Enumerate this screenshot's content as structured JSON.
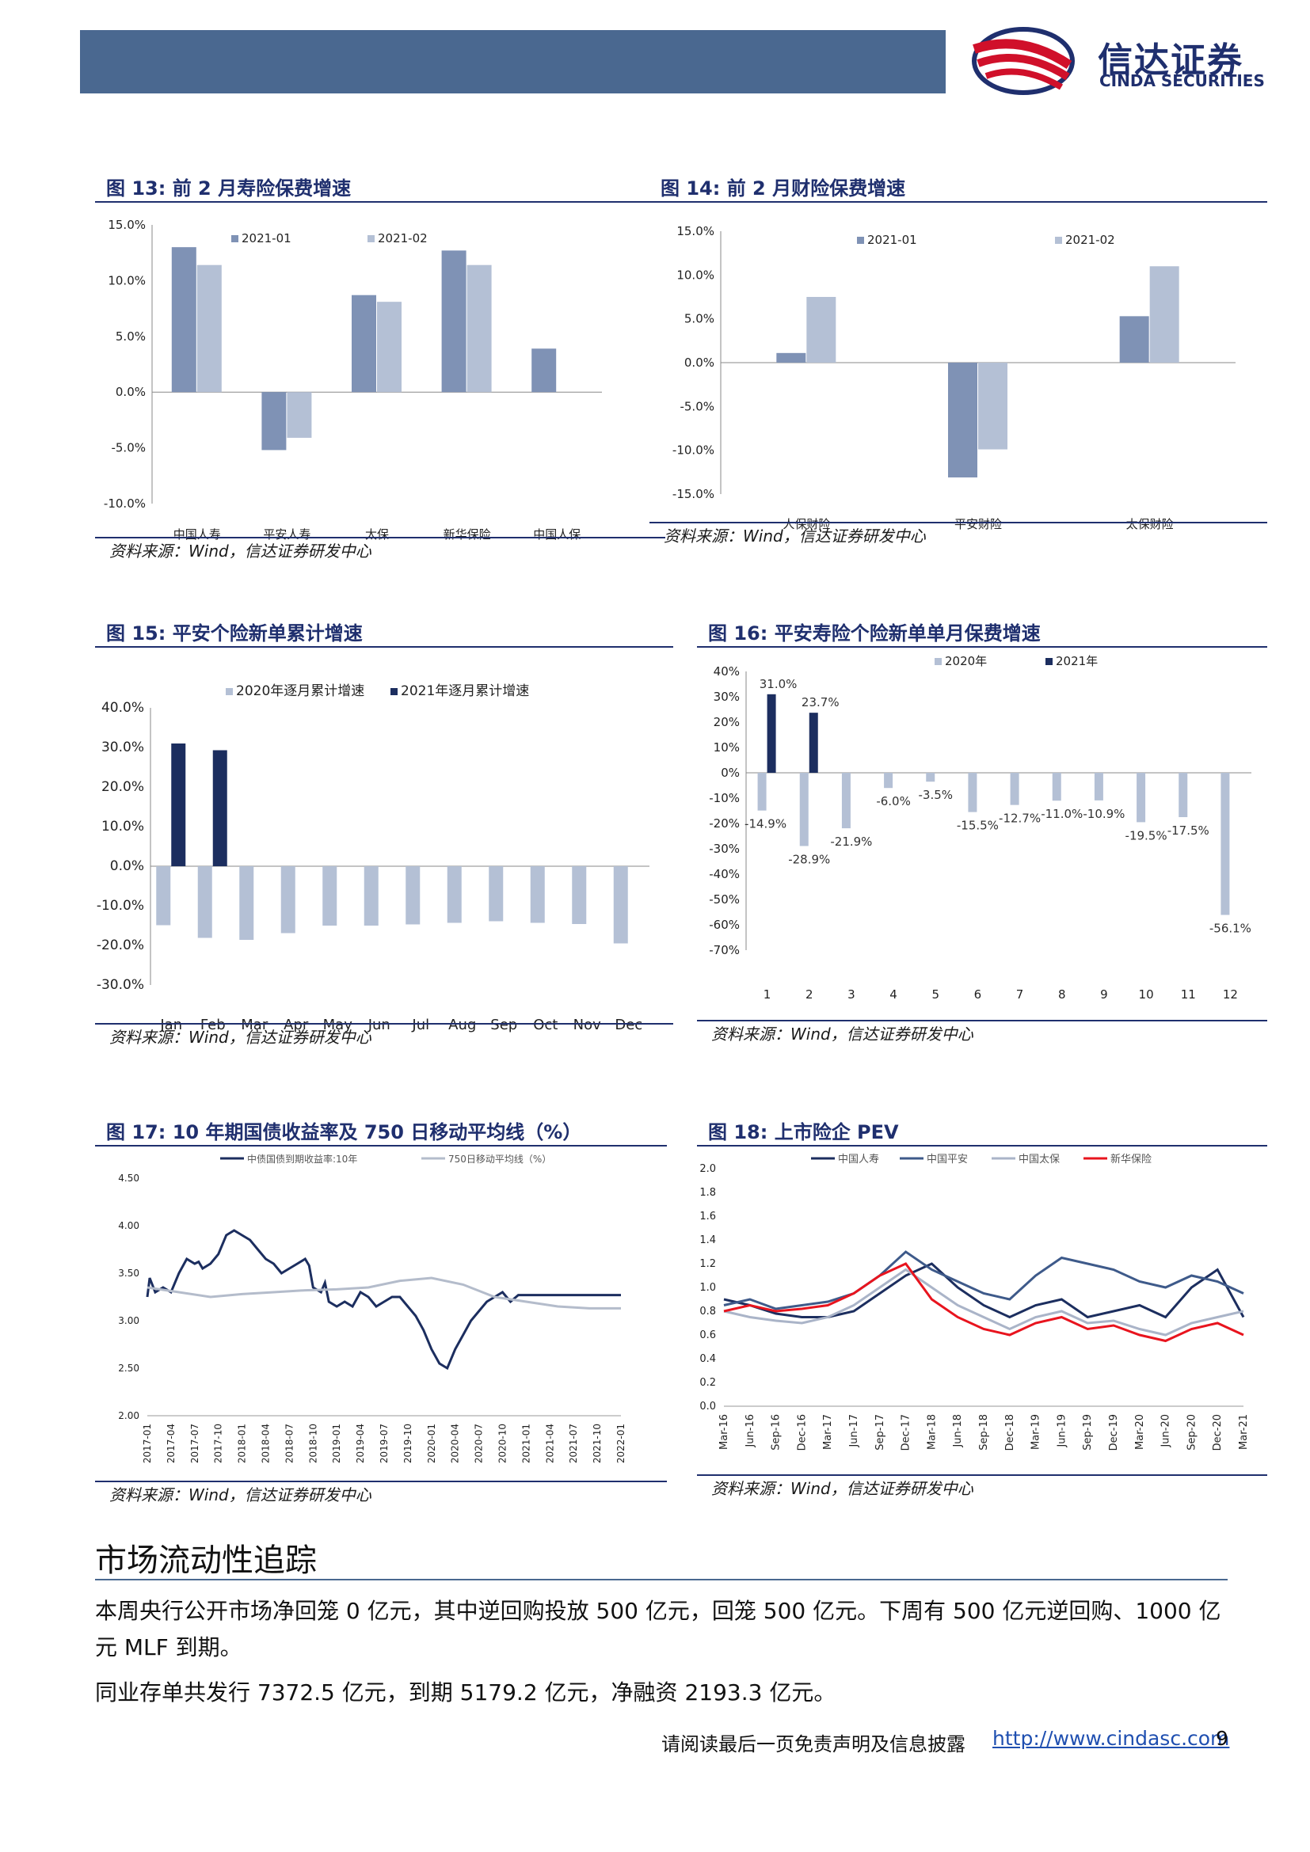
{
  "brand": {
    "name_cn": "信达证券",
    "name_en": "CINDA SECURITIES",
    "colors": {
      "navy": "#1f2f6e",
      "accent_red": "#d0102a",
      "bar_blue": "#4a6890"
    }
  },
  "figures": [
    {
      "title": "图 13:  前 2 月寿险保费增速",
      "source": "资料来源：Wind，信达证券研发中心",
      "chart_data": {
        "type": "bar",
        "categories": [
          "中国人寿",
          "平安人寿",
          "太保",
          "新华保险",
          "中国人保"
        ],
        "series": [
          {
            "name": "2021-01",
            "values": [
              13.0,
              -5.2,
              8.7,
              12.7,
              3.9
            ],
            "color": "#7f92b5"
          },
          {
            "name": "2021-02",
            "values": [
              11.4,
              -4.1,
              8.1,
              11.4,
              null
            ],
            "color": "#b4c0d5"
          }
        ],
        "y_ticks": [
          "15.0%",
          "10.0%",
          "5.0%",
          "0.0%",
          "-5.0%",
          "-10.0%"
        ],
        "ylim": [
          -10,
          15
        ],
        "legend": "top"
      }
    },
    {
      "title": "图 14:  前 2 月财险保费增速",
      "source": "资料来源：Wind，信达证券研发中心",
      "chart_data": {
        "type": "bar",
        "categories": [
          "人保财险",
          "平安财险",
          "太保财险"
        ],
        "series": [
          {
            "name": "2021-01",
            "values": [
              1.1,
              -13.1,
              5.3
            ],
            "color": "#7f92b5"
          },
          {
            "name": "2021-02",
            "values": [
              7.5,
              -9.9,
              11.0
            ],
            "color": "#b4c0d5"
          }
        ],
        "y_ticks": [
          "15.0%",
          "10.0%",
          "5.0%",
          "0.0%",
          "-5.0%",
          "-10.0%",
          "-15.0%"
        ],
        "ylim": [
          -15,
          15
        ],
        "legend": "top"
      }
    },
    {
      "title": "图 15:  平安个险新单累计增速",
      "source": "资料来源：Wind，信达证券研发中心",
      "chart_data": {
        "type": "bar",
        "categories": [
          "Jan",
          "Feb",
          "Mar",
          "Apr",
          "May",
          "Jun",
          "Jul",
          "Aug",
          "Sep",
          "Oct",
          "Nov",
          "Dec"
        ],
        "series": [
          {
            "name": "2020年逐月累计增速",
            "values": [
              -14.9,
              -18.1,
              -18.6,
              -16.9,
              -15.0,
              -15.0,
              -14.7,
              -14.3,
              -13.9,
              -14.3,
              -14.6,
              -19.5
            ],
            "color": "#b4c0d5"
          },
          {
            "name": "2021年逐月累计增速",
            "values": [
              31.0,
              29.3,
              null,
              null,
              null,
              null,
              null,
              null,
              null,
              null,
              null,
              null
            ],
            "color": "#1c2e5f"
          }
        ],
        "y_ticks": [
          "40.0%",
          "30.0%",
          "20.0%",
          "10.0%",
          "0.0%",
          "-10.0%",
          "-20.0%",
          "-30.0%"
        ],
        "ylim": [
          -30,
          40
        ],
        "legend": "top"
      }
    },
    {
      "title": "图 16:  平安寿险个险新单单月保费增速",
      "source": "资料来源：Wind，信达证券研发中心",
      "chart_data": {
        "type": "bar",
        "categories": [
          "1",
          "2",
          "3",
          "4",
          "5",
          "6",
          "7",
          "8",
          "9",
          "10",
          "11",
          "12"
        ],
        "series": [
          {
            "name": "2020年",
            "values": [
              -14.9,
              -28.9,
              -21.9,
              -6.0,
              -3.5,
              -15.5,
              -12.7,
              -11.0,
              -10.9,
              -19.5,
              -17.5,
              -56.1
            ],
            "color": "#b4c0d5"
          },
          {
            "name": "2021年",
            "values": [
              31.0,
              23.7,
              null,
              null,
              null,
              null,
              null,
              null,
              null,
              null,
              null,
              null
            ],
            "color": "#1c2e5f"
          }
        ],
        "data_labels_2020": [
          "-14.9%",
          "-28.9%",
          "-21.9%",
          "-6.0%",
          "-3.5%",
          "-15.5%",
          "-12.7%",
          "-11.0%",
          "-10.9%",
          "-19.5%",
          "-17.5%",
          "-56.1%"
        ],
        "data_labels_2021": [
          "31.0%",
          "23.7%"
        ],
        "y_ticks": [
          "40%",
          "30%",
          "20%",
          "10%",
          "0%",
          "-10%",
          "-20%",
          "-30%",
          "-40%",
          "-50%",
          "-60%",
          "-70%"
        ],
        "ylim": [
          -70,
          40
        ],
        "legend": "top"
      }
    },
    {
      "title": "图 17:  10 年期国债收益率及 750 日移动平均线（%）",
      "source": "资料来源：Wind，信达证券研发中心",
      "chart_data": {
        "type": "line",
        "x_ticks": [
          "2017-01",
          "2017-04",
          "2017-07",
          "2017-10",
          "2018-01",
          "2018-04",
          "2018-07",
          "2018-10",
          "2019-01",
          "2019-04",
          "2019-07",
          "2019-10",
          "2020-01",
          "2020-04",
          "2020-07",
          "2020-10",
          "2021-01",
          "2021-04",
          "2021-07",
          "2021-10",
          "2022-01"
        ],
        "y_ticks": [
          "4.50",
          "4.00",
          "3.50",
          "3.00",
          "2.50",
          "2.00"
        ],
        "ylim": [
          2.0,
          4.5
        ],
        "series": [
          {
            "name": "中债国债到期收益率:10年",
            "color": "#1c2e5f",
            "x": [
              0,
              0.3,
              1,
              2,
              3,
              4,
              5,
              6,
              6.5,
              7,
              8,
              9,
              10,
              11,
              12,
              13,
              14,
              15,
              16,
              17,
              18,
              19,
              20,
              20.5,
              21,
              22,
              22.5,
              23,
              24,
              25,
              26,
              27,
              28,
              29,
              30,
              31,
              32,
              33,
              34,
              35,
              36,
              37,
              38,
              39,
              40,
              41,
              42,
              43,
              44,
              45,
              46,
              47,
              48,
              49,
              50,
              51,
              52,
              53,
              54,
              55,
              56,
              57,
              58,
              59,
              60
            ],
            "values": [
              3.25,
              3.45,
              3.3,
              3.35,
              3.3,
              3.5,
              3.65,
              3.6,
              3.62,
              3.55,
              3.6,
              3.7,
              3.9,
              3.95,
              3.9,
              3.85,
              3.75,
              3.65,
              3.6,
              3.5,
              3.55,
              3.6,
              3.65,
              3.58,
              3.35,
              3.3,
              3.4,
              3.2,
              3.15,
              3.2,
              3.15,
              3.3,
              3.25,
              3.15,
              3.2,
              3.25,
              3.25,
              3.15,
              3.05,
              2.9,
              2.7,
              2.55,
              2.5,
              2.7,
              2.85,
              3.0,
              3.1,
              3.2,
              3.25,
              3.3,
              3.2,
              3.27,
              3.27,
              3.27,
              3.27,
              3.27,
              3.27,
              3.27,
              3.27,
              3.27,
              3.27,
              3.27,
              3.27,
              3.27,
              3.27
            ]
          },
          {
            "name": "750日移动平均线（%）",
            "color": "#b4bccb",
            "x": [
              0,
              4,
              8,
              12,
              16,
              20,
              24,
              28,
              32,
              36,
              40,
              44,
              48,
              52,
              56,
              60
            ],
            "values": [
              3.35,
              3.3,
              3.25,
              3.28,
              3.3,
              3.32,
              3.33,
              3.35,
              3.42,
              3.45,
              3.38,
              3.25,
              3.2,
              3.15,
              3.13,
              3.13
            ]
          }
        ],
        "legend": "top"
      }
    },
    {
      "title": "图 18:  上市险企 PEV",
      "source": "资料来源：Wind，信达证券研发中心",
      "chart_data": {
        "type": "line",
        "x_ticks": [
          "Mar-16",
          "Jun-16",
          "Sep-16",
          "Dec-16",
          "Mar-17",
          "Jun-17",
          "Sep-17",
          "Dec-17",
          "Mar-18",
          "Jun-18",
          "Sep-18",
          "Dec-18",
          "Mar-19",
          "Jun-19",
          "Sep-19",
          "Dec-19",
          "Mar-20",
          "Jun-20",
          "Sep-20",
          "Dec-20",
          "Mar-21"
        ],
        "y_ticks": [
          "2.0",
          "1.8",
          "1.6",
          "1.4",
          "1.2",
          "1.0",
          "0.8",
          "0.6",
          "0.4",
          "0.2",
          "0.0"
        ],
        "ylim": [
          0.0,
          2.0
        ],
        "series": [
          {
            "name": "中国人寿",
            "color": "#1c2e5f",
            "values": [
              0.9,
              0.85,
              0.78,
              0.75,
              0.75,
              0.8,
              0.95,
              1.1,
              1.2,
              1.0,
              0.85,
              0.75,
              0.85,
              0.9,
              0.75,
              0.8,
              0.85,
              0.75,
              1.0,
              1.15,
              0.75
            ]
          },
          {
            "name": "中国平安",
            "color": "#3e5a8a",
            "values": [
              0.85,
              0.9,
              0.82,
              0.85,
              0.88,
              0.95,
              1.1,
              1.3,
              1.15,
              1.05,
              0.95,
              0.9,
              1.1,
              1.25,
              1.2,
              1.15,
              1.05,
              1.0,
              1.1,
              1.05,
              0.95
            ]
          },
          {
            "name": "中国太保",
            "color": "#aab4c8",
            "values": [
              0.8,
              0.75,
              0.72,
              0.7,
              0.75,
              0.85,
              1.0,
              1.15,
              1.0,
              0.85,
              0.75,
              0.65,
              0.75,
              0.8,
              0.7,
              0.72,
              0.65,
              0.6,
              0.7,
              0.75,
              0.8
            ]
          },
          {
            "name": "新华保险",
            "color": "#e8141e",
            "values": [
              0.8,
              0.85,
              0.8,
              0.82,
              0.85,
              0.95,
              1.1,
              1.2,
              0.9,
              0.75,
              0.65,
              0.6,
              0.7,
              0.75,
              0.65,
              0.68,
              0.6,
              0.55,
              0.65,
              0.7,
              0.6
            ]
          }
        ],
        "legend": "top"
      }
    }
  ],
  "section": {
    "title": "市场流动性追踪",
    "paragraphs": [
      "本周央行公开市场净回笼 0 亿元，其中逆回购投放 500 亿元，回笼 500 亿元。下周有 500 亿元逆回购、1000 亿元 MLF 到期。",
      "同业存单共发行 7372.5 亿元，到期 5179.2 亿元，净融资 2193.3 亿元。"
    ]
  },
  "footer": {
    "note": "请阅读最后一页免责声明及信息披露",
    "link": "http://www.cindasc.com",
    "page": "9"
  }
}
